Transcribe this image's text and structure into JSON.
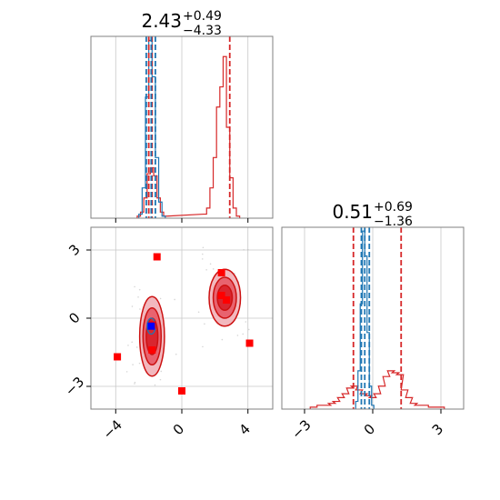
{
  "colors": {
    "red": "#d62728",
    "red_dark": "#cc1111",
    "red_fill_light": "#f2b8be",
    "red_fill_mid": "#e8636f",
    "red_fill_core": "#d9262f",
    "blue": "#1f77b4",
    "marker_red": "#ff0000",
    "marker_blue": "#0000ff",
    "scatter_gray": "#bbbbbb"
  },
  "chart_data": {
    "type": "corner",
    "panels": [
      {
        "id": "marginal-x",
        "type": "histogram",
        "title": {
          "value": "2.43",
          "plus": "+0.49",
          "minus": "−4.33"
        },
        "xlim": [
          -5.5,
          5.5
        ],
        "xticks": [
          -4,
          0,
          4
        ],
        "grid": true,
        "series": [
          {
            "color": "red",
            "bins_x": [
              -2.6,
              -2.4,
              -2.2,
              -2.0,
              -1.8,
              -1.6,
              -1.4,
              -1.2,
              -1.0,
              1.4,
              1.6,
              1.8,
              2.0,
              2.2,
              2.4,
              2.6,
              2.8,
              3.0,
              3.2,
              3.4
            ],
            "counts": [
              0.01,
              0.03,
              0.1,
              0.22,
              0.25,
              0.21,
              0.1,
              0.03,
              0.01,
              0.02,
              0.05,
              0.15,
              0.3,
              0.55,
              0.65,
              0.8,
              0.45,
              0.2,
              0.05,
              0.01
            ],
            "quantiles": [
              -2.0,
              -1.8,
              2.9
            ]
          },
          {
            "color": "blue",
            "bins_x": [
              -2.5,
              -2.3,
              -2.1,
              -1.9,
              -1.7,
              -1.5,
              -1.3,
              -1.1
            ],
            "counts": [
              0.02,
              0.15,
              0.6,
              0.88,
              0.7,
              0.3,
              0.08,
              0.01
            ],
            "quantiles": [
              -2.15,
              -1.85,
              -1.6
            ]
          }
        ]
      },
      {
        "id": "marginal-y",
        "type": "histogram",
        "title": {
          "value": "0.51",
          "plus": "+0.69",
          "minus": "−1.36"
        },
        "xlim": [
          -4,
          4
        ],
        "xticks": [
          -3,
          0,
          3
        ],
        "grid": true,
        "series": [
          {
            "color": "red",
            "bins_x": [
              -2.6,
              -2.3,
              -2.0,
              -1.8,
              -1.6,
              -1.4,
              -1.2,
              -1.0,
              -0.8,
              -0.6,
              -0.4,
              -0.2,
              0.0,
              0.2,
              0.4,
              0.6,
              0.8,
              1.0,
              1.2,
              1.4,
              1.6,
              1.8,
              2.0,
              2.3,
              2.6,
              3.0
            ],
            "counts": [
              0.01,
              0.02,
              0.02,
              0.03,
              0.04,
              0.06,
              0.08,
              0.11,
              0.12,
              0.1,
              0.08,
              0.07,
              0.06,
              0.08,
              0.12,
              0.17,
              0.2,
              0.19,
              0.18,
              0.1,
              0.06,
              0.03,
              0.02,
              0.02,
              0.01,
              0.01
            ],
            "quantiles": [
              -0.85,
              1.25
            ]
          },
          {
            "color": "blue",
            "bins_x": [
              -0.7,
              -0.6,
              -0.5,
              -0.4,
              -0.3,
              -0.2,
              -0.1,
              0.0
            ],
            "counts": [
              0.04,
              0.2,
              0.55,
              0.93,
              0.8,
              0.4,
              0.12,
              0.02
            ],
            "quantiles": [
              -0.5,
              -0.35,
              -0.15
            ]
          }
        ]
      },
      {
        "id": "joint",
        "type": "contour",
        "xlim": [
          -5.5,
          5.5
        ],
        "ylim": [
          -4,
          4
        ],
        "xticks": [
          -4,
          0,
          4
        ],
        "yticks": [
          -3,
          0,
          3
        ],
        "grid": true,
        "blobs": [
          {
            "cx": -1.8,
            "cy": -0.8,
            "rx": [
              0.35,
              0.55,
              0.75
            ],
            "ry": [
              0.8,
              1.25,
              1.75
            ]
          },
          {
            "cx": 2.6,
            "cy": 0.9,
            "rx": [
              0.45,
              0.7,
              0.95
            ],
            "ry": [
              0.55,
              0.9,
              1.25
            ]
          }
        ],
        "red_markers": [
          [
            -1.5,
            2.7
          ],
          [
            2.4,
            2.0
          ],
          [
            2.4,
            1.0
          ],
          [
            2.7,
            0.8
          ],
          [
            -1.8,
            -0.3
          ],
          [
            -1.8,
            -1.4
          ],
          [
            -3.9,
            -1.7
          ],
          [
            4.1,
            -1.1
          ],
          [
            0.0,
            -3.2
          ]
        ],
        "blue_markers": [
          [
            -1.85,
            -0.35
          ]
        ],
        "blue_contour": {
          "cx": -1.85,
          "cy": -0.35,
          "rx": 0.25,
          "ry": 0.35
        }
      }
    ]
  }
}
